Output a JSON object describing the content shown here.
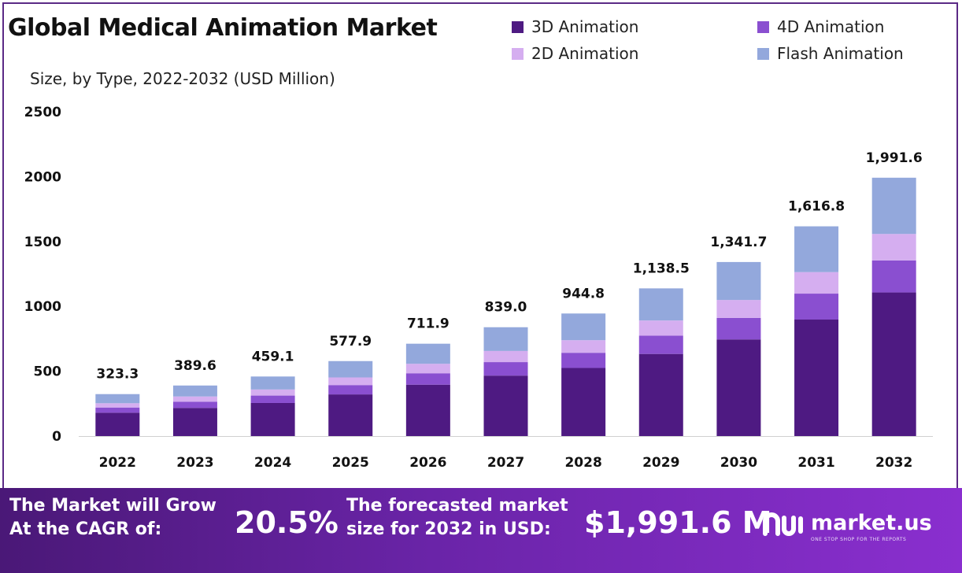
{
  "title": "Global Medical Animation Market",
  "subtitle": "Size, by Type, 2022-2032 (USD Million)",
  "legend": [
    {
      "label": "3D Animation",
      "color": "#4e1a82"
    },
    {
      "label": "4D Animation",
      "color": "#8a4fd0"
    },
    {
      "label": "2D Animation",
      "color": "#d5aef0"
    },
    {
      "label": "Flash Animation",
      "color": "#93a8dc"
    }
  ],
  "banner": {
    "cagr_text_1": "The Market will Grow",
    "cagr_text_2": "At the CAGR of:",
    "cagr_value": "20.5%",
    "forecast_text_1": "The forecasted market",
    "forecast_text_2": "size for 2032 in USD:",
    "forecast_value": "$1,991.6 M",
    "brand": "market.us",
    "brand_tagline": "ONE STOP SHOP FOR THE REPORTS"
  },
  "chart_data": {
    "type": "bar",
    "stacked": true,
    "title": "Global Medical Animation Market",
    "subtitle": "Size, by Type, 2022-2032 (USD Million)",
    "xlabel": "",
    "ylabel": "",
    "ylim": [
      0,
      2500
    ],
    "yticks": [
      0,
      500,
      1000,
      1500,
      2000,
      2500
    ],
    "categories": [
      "2022",
      "2023",
      "2024",
      "2025",
      "2026",
      "2027",
      "2028",
      "2029",
      "2030",
      "2031",
      "2032"
    ],
    "totals": [
      323.3,
      389.6,
      459.1,
      577.9,
      711.9,
      839.0,
      944.8,
      1138.5,
      1341.7,
      1616.8,
      1991.6
    ],
    "total_labels": [
      "323.3",
      "389.6",
      "459.1",
      "577.9",
      "711.9",
      "839.0",
      "944.8",
      "1,138.5",
      "1,341.7",
      "1,616.8",
      "1,991.6"
    ],
    "series": [
      {
        "name": "3D Animation",
        "color": "#4e1a82",
        "values": [
          180,
          217,
          255,
          321,
          396,
          466,
          525,
          633,
          745,
          898,
          1107
        ]
      },
      {
        "name": "4D Animation",
        "color": "#8a4fd0",
        "values": [
          40,
          48,
          57,
          72,
          88,
          104,
          117,
          141,
          166,
          200,
          247
        ]
      },
      {
        "name": "2D Animation",
        "color": "#d5aef0",
        "values": [
          33,
          40,
          47,
          59,
          73,
          86,
          97,
          117,
          138,
          166,
          204
        ]
      },
      {
        "name": "Flash Animation",
        "color": "#93a8dc",
        "values": [
          70.3,
          84.6,
          100.1,
          125.9,
          154.9,
          183.0,
          205.8,
          247.5,
          292.7,
          352.8,
          433.6
        ]
      }
    ],
    "grid": false,
    "legend_position": "top-right"
  }
}
